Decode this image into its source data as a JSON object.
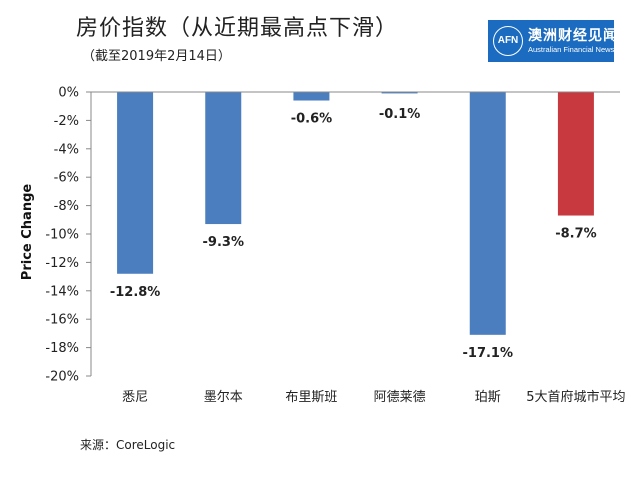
{
  "header": {
    "title": "房价指数（从近期最高点下滑）",
    "subtitle": "（截至2019年2月14日）"
  },
  "logo": {
    "mark": "AFN",
    "name_cn": "澳洲财经见闻",
    "name_en": "Australian Financial News"
  },
  "footer": {
    "source": "来源：CoreLogic"
  },
  "colors": {
    "bar_default": "#4a7ebf",
    "bar_highlight": "#c8393f"
  },
  "chart_data": {
    "type": "bar",
    "title": "房价指数（从近期最高点下滑）",
    "subtitle": "（截至2019年2月14日）",
    "xlabel": "",
    "ylabel": "Price Change",
    "categories": [
      "悉尼",
      "墨尔本",
      "布里斯班",
      "阿德莱德",
      "珀斯",
      "5大首府城市平均"
    ],
    "values": [
      -12.8,
      -9.3,
      -0.6,
      -0.1,
      -17.1,
      -8.7
    ],
    "data_labels": [
      "-12.8%",
      "-9.3%",
      "-0.6%",
      "-0.1%",
      "-17.1%",
      "-8.7%"
    ],
    "highlight_index": 5,
    "ylim": [
      -20,
      0
    ],
    "yticks": [
      0,
      -2,
      -4,
      -6,
      -8,
      -10,
      -12,
      -14,
      -16,
      -18,
      -20
    ],
    "ytick_labels": [
      "0%",
      "-2%",
      "-4%",
      "-6%",
      "-8%",
      "-10%",
      "-12%",
      "-14%",
      "-16%",
      "-18%",
      "-20%"
    ],
    "grid": false,
    "legend": "none"
  }
}
